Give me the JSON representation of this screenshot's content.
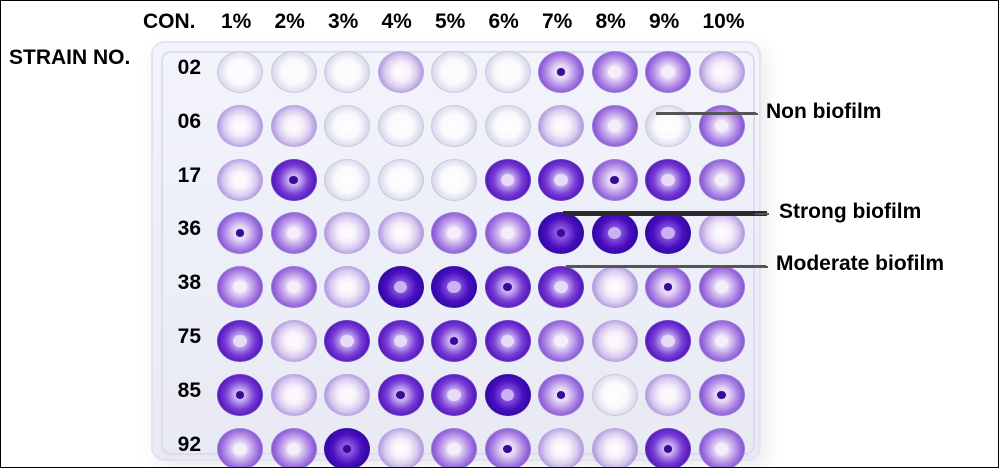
{
  "image": {
    "column_header_label": "CON.",
    "row_header_label": "STRAIN NO.",
    "concentrations": [
      "1%",
      "2%",
      "3%",
      "4%",
      "5%",
      "6%",
      "7%",
      "8%",
      "9%",
      "10%"
    ],
    "strains": [
      "02",
      "06",
      "17",
      "36",
      "38",
      "75",
      "85",
      "92"
    ],
    "annotations": {
      "non": "Non biofilm",
      "strong": "Strong biofilm",
      "moderate": "Moderate biofilm"
    },
    "stain_color": "#4a10c0",
    "well_intensity_levels": [
      [
        0,
        0,
        0,
        1,
        0,
        0,
        2,
        2,
        2,
        1
      ],
      [
        1,
        1,
        0,
        0,
        0,
        0,
        1,
        2,
        0,
        2
      ],
      [
        1,
        3,
        0,
        0,
        0,
        3,
        3,
        2,
        3,
        2
      ],
      [
        2,
        2,
        1,
        1,
        2,
        2,
        4,
        4,
        4,
        1
      ],
      [
        2,
        2,
        1,
        4,
        4,
        3,
        3,
        1,
        2,
        2
      ],
      [
        3,
        1,
        3,
        3,
        3,
        3,
        2,
        1,
        3,
        2
      ],
      [
        3,
        1,
        1,
        3,
        3,
        4,
        2,
        0,
        1,
        2
      ],
      [
        2,
        2,
        4,
        1,
        2,
        2,
        1,
        1,
        3,
        2
      ]
    ]
  }
}
